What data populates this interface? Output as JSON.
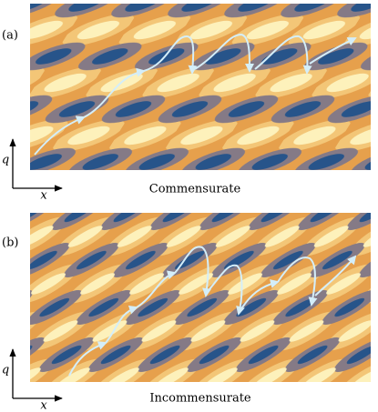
{
  "panels": [
    {
      "label": "(a)",
      "y_axis": "q",
      "x_axis": "x",
      "caption": "Commensurate"
    },
    {
      "label": "(b)",
      "y_axis": "q",
      "x_axis": "x",
      "caption": "Incommensurate"
    }
  ]
}
